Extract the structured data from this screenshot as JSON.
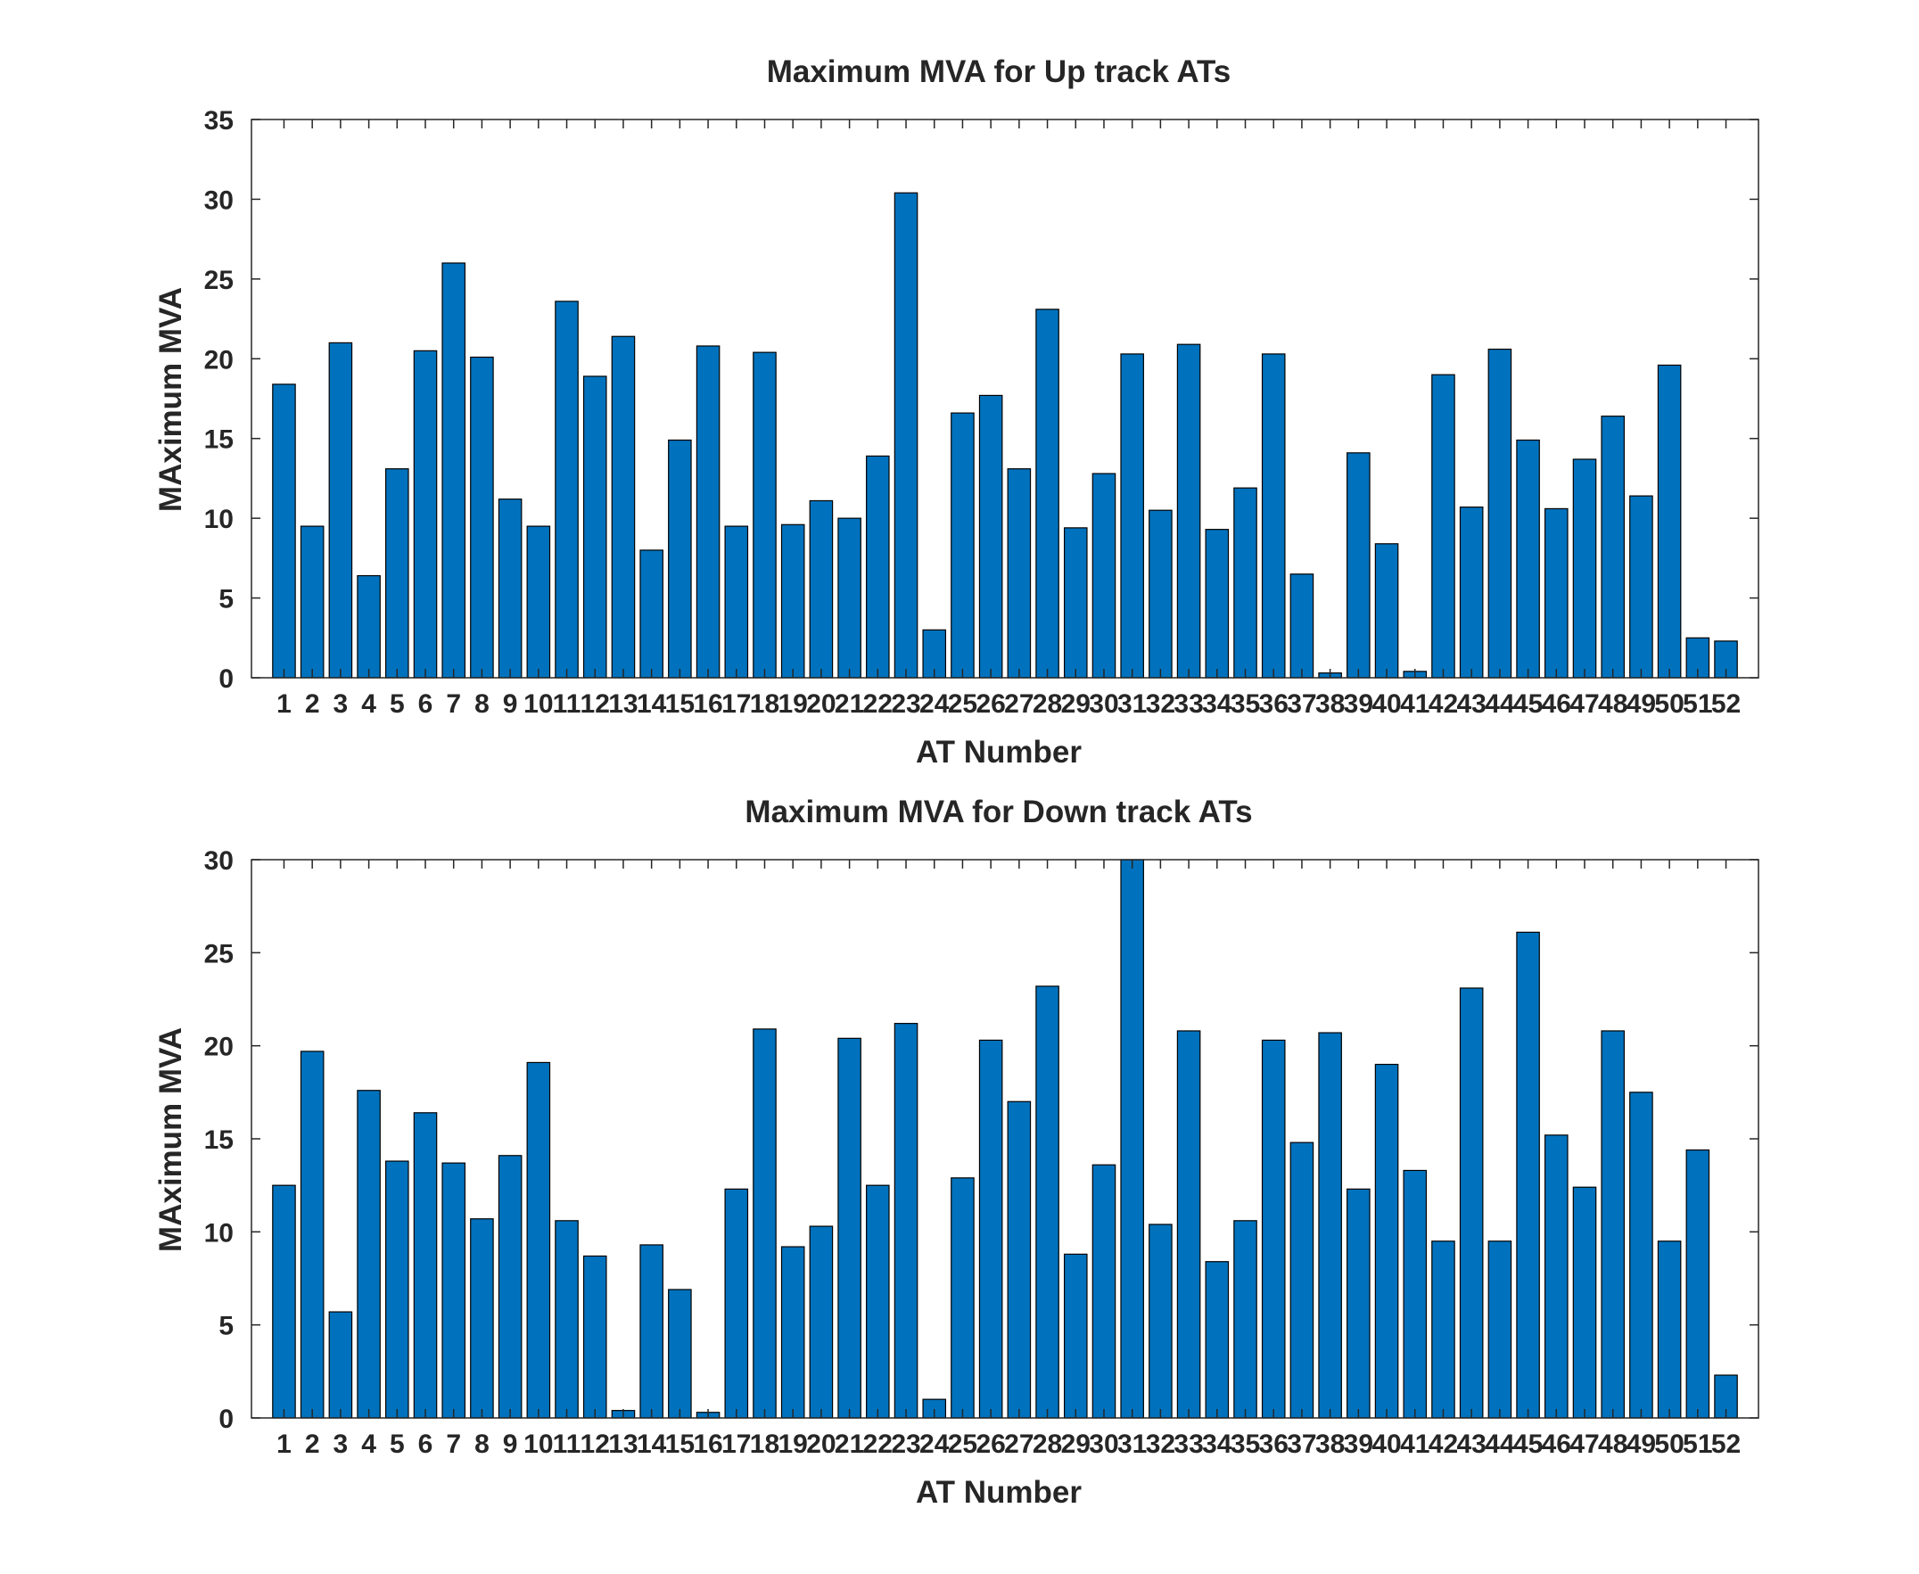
{
  "chart_data": [
    {
      "type": "bar",
      "title": "Maximum MVA for Up track ATs",
      "xlabel": "AT Number",
      "ylabel": "MAximum MVA",
      "ylim": [
        0,
        35
      ],
      "yticks": [
        0,
        5,
        10,
        15,
        20,
        25,
        30,
        35
      ],
      "categories": [
        "1",
        "2",
        "3",
        "4",
        "5",
        "6",
        "7",
        "8",
        "9",
        "10",
        "11",
        "12",
        "13",
        "14",
        "15",
        "16",
        "17",
        "18",
        "19",
        "20",
        "21",
        "22",
        "23",
        "24",
        "25",
        "26",
        "27",
        "28",
        "29",
        "30",
        "31",
        "32",
        "33",
        "34",
        "35",
        "36",
        "37",
        "38",
        "39",
        "40",
        "41",
        "42",
        "43",
        "44",
        "45",
        "46",
        "47",
        "48",
        "49",
        "50",
        "51",
        "52"
      ],
      "values": [
        18.4,
        9.5,
        21.0,
        6.4,
        13.1,
        20.5,
        26.0,
        20.1,
        11.2,
        9.5,
        23.6,
        18.9,
        21.4,
        8.0,
        14.9,
        20.8,
        9.5,
        20.4,
        9.6,
        11.1,
        10.0,
        13.9,
        30.4,
        3.0,
        16.6,
        17.7,
        13.1,
        23.1,
        9.4,
        12.8,
        20.3,
        10.5,
        20.9,
        9.3,
        11.9,
        20.3,
        6.5,
        0.3,
        14.1,
        8.4,
        0.4,
        19.0,
        10.7,
        20.6,
        14.9,
        10.6,
        13.7,
        16.4,
        11.4,
        19.6,
        2.5,
        2.3
      ],
      "bar_color": "#0072BD",
      "grid": false
    },
    {
      "type": "bar",
      "title": "Maximum MVA for Down track ATs",
      "xlabel": "AT Number",
      "ylabel": "MAximum MVA",
      "ylim": [
        0,
        30
      ],
      "yticks": [
        0,
        5,
        10,
        15,
        20,
        25,
        30
      ],
      "categories": [
        "1",
        "2",
        "3",
        "4",
        "5",
        "6",
        "7",
        "8",
        "9",
        "10",
        "11",
        "12",
        "13",
        "14",
        "15",
        "16",
        "17",
        "18",
        "19",
        "20",
        "21",
        "22",
        "23",
        "24",
        "25",
        "26",
        "27",
        "28",
        "29",
        "30",
        "31",
        "32",
        "33",
        "34",
        "35",
        "36",
        "37",
        "38",
        "39",
        "40",
        "41",
        "42",
        "43",
        "44",
        "45",
        "46",
        "47",
        "48",
        "49",
        "50",
        "51",
        "52"
      ],
      "values": [
        12.5,
        19.7,
        5.7,
        17.6,
        13.8,
        16.4,
        13.7,
        10.7,
        14.1,
        19.1,
        10.6,
        8.7,
        0.4,
        9.3,
        6.9,
        0.3,
        12.3,
        20.9,
        9.2,
        10.3,
        20.4,
        12.5,
        21.2,
        1.0,
        12.9,
        20.3,
        17.0,
        23.2,
        8.8,
        13.6,
        30.0,
        10.4,
        20.8,
        8.4,
        10.6,
        20.3,
        14.8,
        20.7,
        12.3,
        19.0,
        13.3,
        9.5,
        23.1,
        9.5,
        26.1,
        15.2,
        12.4,
        20.8,
        17.5,
        9.5,
        14.4,
        2.3
      ],
      "bar_color": "#0072BD",
      "grid": false
    }
  ]
}
